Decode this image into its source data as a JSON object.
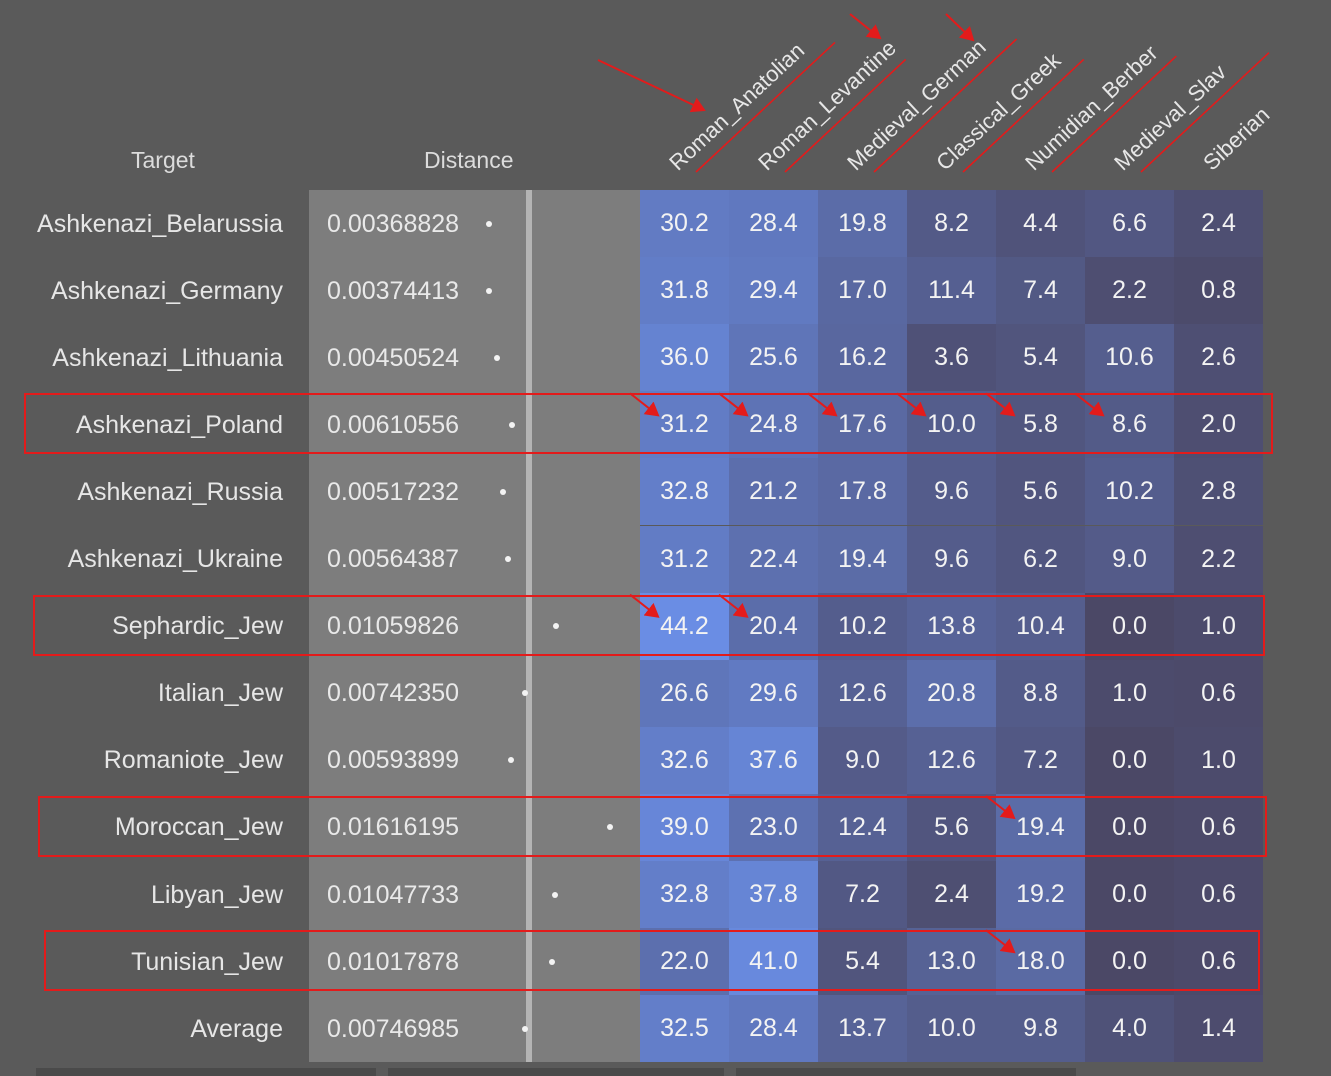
{
  "chart_data": {
    "type": "heatmap",
    "headers": {
      "target": "Target",
      "distance": "Distance"
    },
    "columns": [
      "Roman_Anatolian",
      "Roman_Levantine",
      "Medieval_German",
      "Classical_Greek",
      "Numidian_Berber",
      "Medieval_Slav",
      "Siberian"
    ],
    "rows": [
      {
        "target": "Ashkenazi_Belarussia",
        "distance": "0.00368828",
        "values": [
          "30.2",
          "28.4",
          "19.8",
          "8.2",
          "4.4",
          "6.6",
          "2.4"
        ]
      },
      {
        "target": "Ashkenazi_Germany",
        "distance": "0.00374413",
        "values": [
          "31.8",
          "29.4",
          "17.0",
          "11.4",
          "7.4",
          "2.2",
          "0.8"
        ]
      },
      {
        "target": "Ashkenazi_Lithuania",
        "distance": "0.00450524",
        "values": [
          "36.0",
          "25.6",
          "16.2",
          "3.6",
          "5.4",
          "10.6",
          "2.6"
        ]
      },
      {
        "target": "Ashkenazi_Poland",
        "distance": "0.00610556",
        "values": [
          "31.2",
          "24.8",
          "17.6",
          "10.0",
          "5.8",
          "8.6",
          "2.0"
        ]
      },
      {
        "target": "Ashkenazi_Russia",
        "distance": "0.00517232",
        "values": [
          "32.8",
          "21.2",
          "17.8",
          "9.6",
          "5.6",
          "10.2",
          "2.8"
        ]
      },
      {
        "target": "Ashkenazi_Ukraine",
        "distance": "0.00564387",
        "values": [
          "31.2",
          "22.4",
          "19.4",
          "9.6",
          "6.2",
          "9.0",
          "2.2"
        ]
      },
      {
        "target": "Sephardic_Jew",
        "distance": "0.01059826",
        "values": [
          "44.2",
          "20.4",
          "10.2",
          "13.8",
          "10.4",
          "0.0",
          "1.0"
        ]
      },
      {
        "target": "Italian_Jew",
        "distance": "0.00742350",
        "values": [
          "26.6",
          "29.6",
          "12.6",
          "20.8",
          "8.8",
          "1.0",
          "0.6"
        ]
      },
      {
        "target": "Romaniote_Jew",
        "distance": "0.00593899",
        "values": [
          "32.6",
          "37.6",
          "9.0",
          "12.6",
          "7.2",
          "0.0",
          "1.0"
        ]
      },
      {
        "target": "Moroccan_Jew",
        "distance": "0.01616195",
        "values": [
          "39.0",
          "23.0",
          "12.4",
          "5.6",
          "19.4",
          "0.0",
          "0.6"
        ]
      },
      {
        "target": "Libyan_Jew",
        "distance": "0.01047733",
        "values": [
          "32.8",
          "37.8",
          "7.2",
          "2.4",
          "19.2",
          "0.0",
          "0.6"
        ]
      },
      {
        "target": "Tunisian_Jew",
        "distance": "0.01017878",
        "values": [
          "22.0",
          "41.0",
          "5.4",
          "13.0",
          "18.0",
          "0.0",
          "0.6"
        ]
      },
      {
        "target": "Average",
        "distance": "0.00746985",
        "values": [
          "32.5",
          "28.4",
          "13.7",
          "10.0",
          "9.8",
          "4.0",
          "1.4"
        ]
      }
    ],
    "highlighted_rows": [
      "Ashkenazi_Poland",
      "Sephardic_Jew",
      "Moroccan_Jew",
      "Tunisian_Jew"
    ],
    "underlined_columns": [
      "Roman_Anatolian",
      "Roman_Levantine",
      "Medieval_German",
      "Classical_Greek",
      "Numidian_Berber",
      "Medieval_Slav"
    ],
    "arrowed_columns": [
      "Roman_Anatolian",
      "Roman_Levantine",
      "Medieval_German"
    ],
    "arrowed_cells": [
      [
        "Ashkenazi_Poland",
        "Roman_Anatolian"
      ],
      [
        "Ashkenazi_Poland",
        "Roman_Levantine"
      ],
      [
        "Ashkenazi_Poland",
        "Medieval_German"
      ],
      [
        "Ashkenazi_Poland",
        "Classical_Greek"
      ],
      [
        "Ashkenazi_Poland",
        "Numidian_Berber"
      ],
      [
        "Ashkenazi_Poland",
        "Medieval_Slav"
      ],
      [
        "Sephardic_Jew",
        "Roman_Anatolian"
      ],
      [
        "Sephardic_Jew",
        "Roman_Levantine"
      ],
      [
        "Moroccan_Jew",
        "Numidian_Berber"
      ],
      [
        "Tunisian_Jew",
        "Numidian_Berber"
      ]
    ],
    "colors": {
      "background": "#5a5a5a",
      "distance_panel": "#7d7d7d",
      "cell_low": "#4b4866",
      "cell_high": "#6a8ee6",
      "annotation": "#e31b1b",
      "text": "#f3f3f3"
    }
  }
}
